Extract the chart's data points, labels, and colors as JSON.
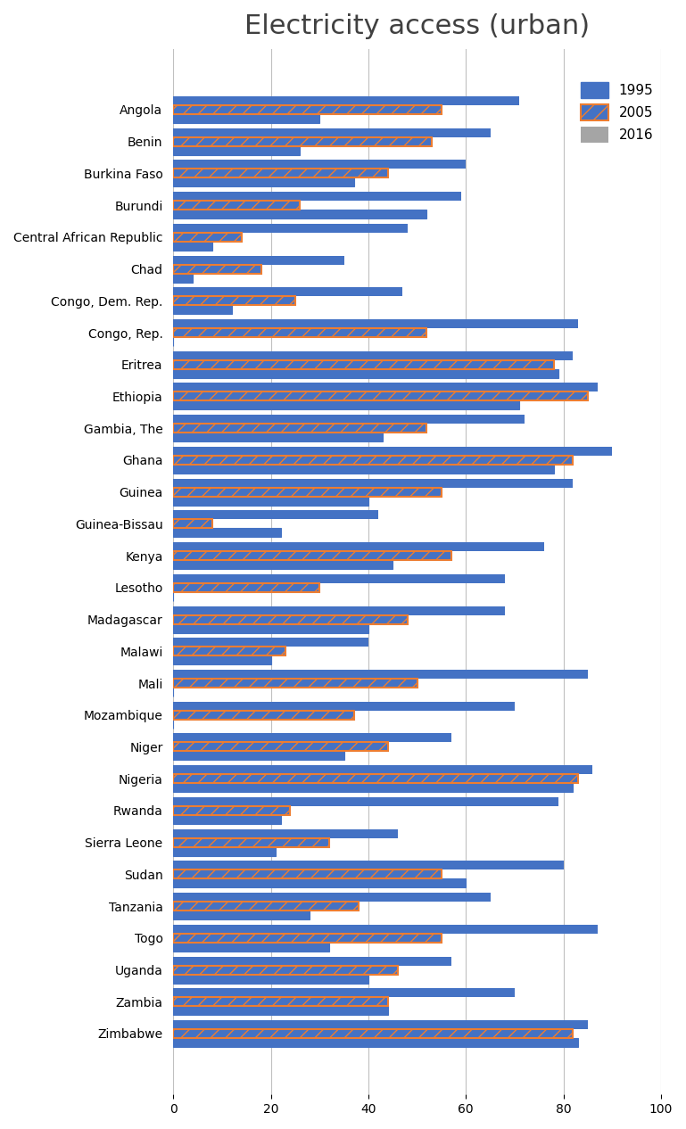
{
  "title": "Electricity access (urban)",
  "countries": [
    "Angola",
    "Benin",
    "Burkina Faso",
    "Burundi",
    "Central African Republic",
    "Chad",
    "Congo, Dem. Rep.",
    "Congo, Rep.",
    "Eritrea",
    "Ethiopia",
    "Gambia, The",
    "Ghana",
    "Guinea",
    "Guinea-Bissau",
    "Kenya",
    "Lesotho",
    "Madagascar",
    "Malawi",
    "Mali",
    "Mozambique",
    "Niger",
    "Nigeria",
    "Rwanda",
    "Sierra Leone",
    "Sudan",
    "Tanzania",
    "Togo",
    "Uganda",
    "Zambia",
    "Zimbabwe"
  ],
  "data_1995": [
    30,
    26,
    37,
    52,
    8,
    4,
    12,
    0,
    79,
    71,
    43,
    78,
    40,
    22,
    45,
    0,
    40,
    20,
    0,
    0,
    35,
    82,
    22,
    21,
    60,
    28,
    32,
    40,
    44,
    83
  ],
  "data_2005": [
    55,
    53,
    44,
    26,
    14,
    18,
    25,
    52,
    78,
    85,
    52,
    82,
    55,
    8,
    57,
    30,
    48,
    23,
    50,
    37,
    44,
    83,
    24,
    32,
    55,
    38,
    55,
    46,
    44,
    82
  ],
  "data_2016": [
    71,
    65,
    60,
    59,
    48,
    35,
    47,
    83,
    82,
    87,
    72,
    90,
    82,
    42,
    76,
    68,
    68,
    40,
    85,
    70,
    57,
    86,
    79,
    46,
    80,
    65,
    87,
    57,
    70,
    85
  ],
  "color_blue": "#4472C4",
  "color_orange": "#ED7D31",
  "color_gray": "#A5A5A5",
  "xlim": [
    0,
    100
  ],
  "xticks": [
    0,
    20,
    40,
    60,
    80,
    100
  ],
  "grid_color": "#C0C0C0",
  "title_fontsize": 22,
  "tick_fontsize": 10,
  "legend_fontsize": 11,
  "bar_height": 0.28,
  "figsize": [
    7.69,
    12.66
  ],
  "dpi": 100
}
